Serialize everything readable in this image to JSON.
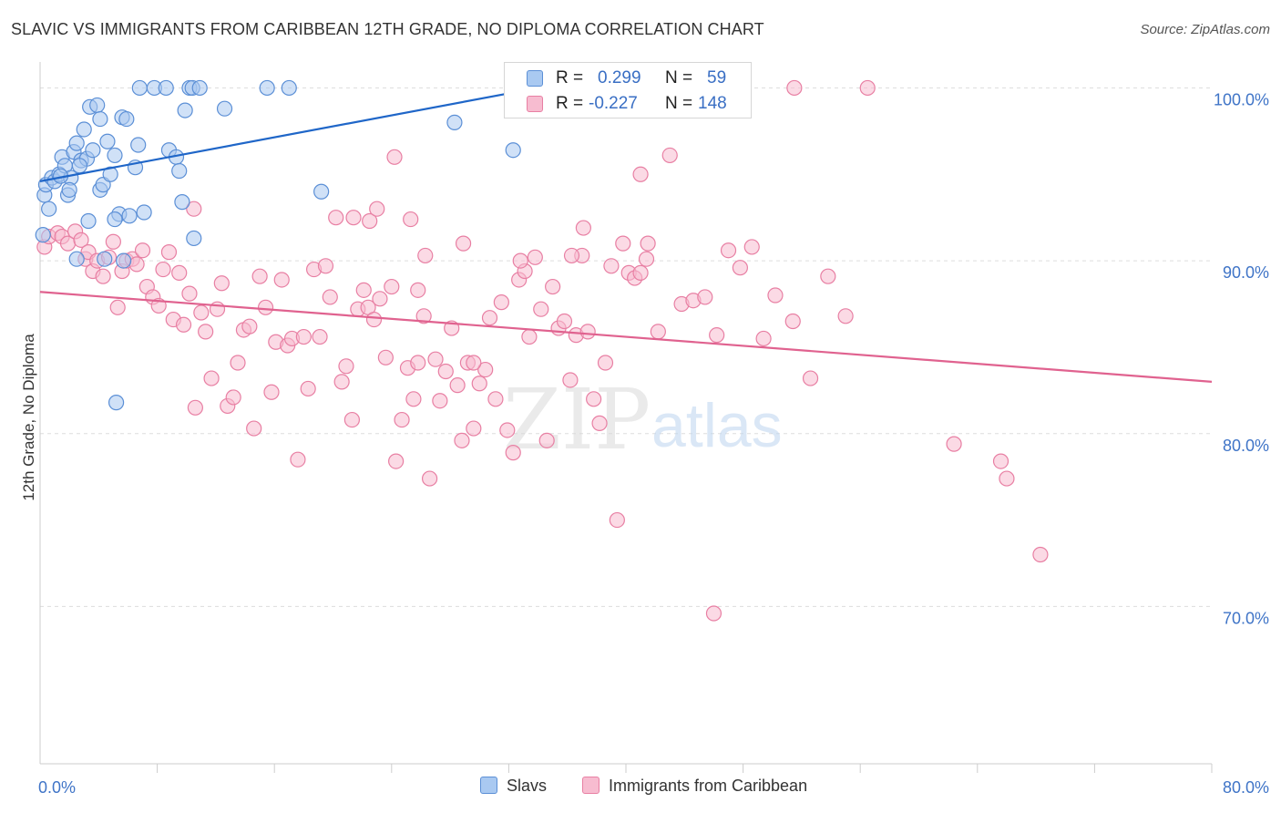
{
  "header": {
    "title": "SLAVIC VS IMMIGRANTS FROM CARIBBEAN 12TH GRADE, NO DIPLOMA CORRELATION CHART",
    "source": "Source: ZipAtlas.com"
  },
  "watermark": {
    "zip": "ZIP",
    "atlas": "atlas"
  },
  "legend": {
    "r_label": "R =",
    "n_label": "N =",
    "rows": [
      {
        "r_value": "0.299",
        "n_value": "59"
      },
      {
        "r_value": "-0.227",
        "n_value": "148"
      }
    ]
  },
  "bottom_legend": [
    "Slavs",
    "Immigrants from Caribbean"
  ],
  "chart_data": {
    "type": "scatter",
    "title": "SLAVIC VS IMMIGRANTS FROM CARIBBEAN 12TH GRADE, NO DIPLOMA CORRELATION CHART",
    "xlabel": "",
    "ylabel": "12th Grade, No Diploma",
    "xlim": [
      0,
      80
    ],
    "ylim": [
      60.9,
      101.5
    ],
    "x_tick_labels": [
      {
        "value": 0,
        "label": "0.0%"
      },
      {
        "value": 80,
        "label": "80.0%"
      }
    ],
    "y_tick_labels": [
      {
        "value": 100,
        "label": "100.0%"
      },
      {
        "value": 90,
        "label": "90.0%"
      },
      {
        "value": 80,
        "label": "80.0%"
      },
      {
        "value": 70,
        "label": "70.0%"
      }
    ],
    "grid": true,
    "legend_position": "top-center",
    "colors": {
      "slavs_fill": "#a9c9f1",
      "slavs_stroke": "#5b8fd6",
      "slavs_line": "#1f66c8",
      "carib_fill": "#f7bcd0",
      "carib_stroke": "#e87fa3",
      "carib_line": "#e0628f",
      "axis_text": "#3f74c7"
    },
    "series": [
      {
        "name": "Slavs",
        "trend": {
          "x": [
            0.0,
            34.0
          ],
          "y": [
            94.6,
            100.0
          ]
        },
        "points": [
          [
            0.3,
            93.8
          ],
          [
            0.4,
            94.4
          ],
          [
            0.6,
            93.0
          ],
          [
            0.8,
            94.8
          ],
          [
            1.0,
            94.6
          ],
          [
            1.3,
            95.0
          ],
          [
            1.5,
            96.0
          ],
          [
            1.7,
            95.5
          ],
          [
            1.9,
            93.8
          ],
          [
            2.1,
            94.8
          ],
          [
            2.3,
            96.3
          ],
          [
            2.5,
            96.8
          ],
          [
            2.8,
            95.8
          ],
          [
            3.0,
            97.6
          ],
          [
            3.2,
            95.9
          ],
          [
            3.4,
            98.9
          ],
          [
            3.6,
            96.4
          ],
          [
            3.9,
            99.0
          ],
          [
            4.1,
            94.1
          ],
          [
            4.3,
            94.4
          ],
          [
            4.6,
            96.9
          ],
          [
            4.8,
            95.0
          ],
          [
            5.1,
            96.1
          ],
          [
            5.4,
            92.7
          ],
          [
            5.6,
            98.3
          ],
          [
            5.9,
            98.2
          ],
          [
            6.1,
            92.6
          ],
          [
            6.5,
            95.4
          ],
          [
            6.7,
            96.7
          ],
          [
            7.1,
            92.8
          ],
          [
            8.8,
            96.4
          ],
          [
            9.3,
            96.0
          ],
          [
            9.5,
            95.2
          ],
          [
            9.7,
            93.4
          ],
          [
            9.9,
            98.7
          ],
          [
            10.5,
            91.3
          ],
          [
            12.6,
            98.8
          ],
          [
            15.5,
            100.0
          ],
          [
            17.0,
            100.0
          ],
          [
            19.2,
            94.0
          ],
          [
            6.8,
            100.0
          ],
          [
            7.8,
            100.0
          ],
          [
            8.6,
            100.0
          ],
          [
            10.2,
            100.0
          ],
          [
            10.4,
            100.0
          ],
          [
            10.9,
            100.0
          ],
          [
            2.5,
            90.1
          ],
          [
            4.4,
            90.1
          ],
          [
            5.7,
            90.0
          ],
          [
            3.3,
            92.3
          ],
          [
            5.1,
            92.4
          ],
          [
            2.0,
            94.1
          ],
          [
            1.4,
            94.9
          ],
          [
            4.1,
            98.2
          ],
          [
            2.7,
            95.5
          ],
          [
            28.3,
            98.0
          ],
          [
            32.3,
            96.4
          ],
          [
            5.2,
            81.8
          ],
          [
            0.2,
            91.5
          ]
        ]
      },
      {
        "name": "Immigrants from Caribbean",
        "trend": {
          "x": [
            0.0,
            80.0
          ],
          "y": [
            88.2,
            83.0
          ]
        },
        "points": [
          [
            0.3,
            90.8
          ],
          [
            0.6,
            91.4
          ],
          [
            1.2,
            91.6
          ],
          [
            1.5,
            91.4
          ],
          [
            1.9,
            91.0
          ],
          [
            2.4,
            91.7
          ],
          [
            2.8,
            91.2
          ],
          [
            3.1,
            90.1
          ],
          [
            3.3,
            90.5
          ],
          [
            3.6,
            89.4
          ],
          [
            3.9,
            90.0
          ],
          [
            4.3,
            89.1
          ],
          [
            4.7,
            90.2
          ],
          [
            5.0,
            91.1
          ],
          [
            5.3,
            87.3
          ],
          [
            5.6,
            89.4
          ],
          [
            5.9,
            90.0
          ],
          [
            6.3,
            90.1
          ],
          [
            6.6,
            89.8
          ],
          [
            7.0,
            90.6
          ],
          [
            7.3,
            88.5
          ],
          [
            7.7,
            87.9
          ],
          [
            8.1,
            87.4
          ],
          [
            8.4,
            89.5
          ],
          [
            8.8,
            90.5
          ],
          [
            9.1,
            86.6
          ],
          [
            9.5,
            89.3
          ],
          [
            9.8,
            86.3
          ],
          [
            10.2,
            88.1
          ],
          [
            10.6,
            81.5
          ],
          [
            11.0,
            87.0
          ],
          [
            11.3,
            85.9
          ],
          [
            11.7,
            83.2
          ],
          [
            12.1,
            87.2
          ],
          [
            12.4,
            88.7
          ],
          [
            12.8,
            81.6
          ],
          [
            13.2,
            82.1
          ],
          [
            13.5,
            84.1
          ],
          [
            13.9,
            86.0
          ],
          [
            14.3,
            86.2
          ],
          [
            14.6,
            80.3
          ],
          [
            15.0,
            89.1
          ],
          [
            15.4,
            87.3
          ],
          [
            15.8,
            82.4
          ],
          [
            16.1,
            85.3
          ],
          [
            16.5,
            88.9
          ],
          [
            16.9,
            85.1
          ],
          [
            17.2,
            85.5
          ],
          [
            17.6,
            78.5
          ],
          [
            18.0,
            85.6
          ],
          [
            18.3,
            82.6
          ],
          [
            18.7,
            89.5
          ],
          [
            19.1,
            85.6
          ],
          [
            19.5,
            89.7
          ],
          [
            19.8,
            87.9
          ],
          [
            20.2,
            92.5
          ],
          [
            20.6,
            83.0
          ],
          [
            20.9,
            83.9
          ],
          [
            21.3,
            80.8
          ],
          [
            21.7,
            87.2
          ],
          [
            22.1,
            88.3
          ],
          [
            22.4,
            87.3
          ],
          [
            22.8,
            86.6
          ],
          [
            23.2,
            87.8
          ],
          [
            23.6,
            84.4
          ],
          [
            24.0,
            88.5
          ],
          [
            24.3,
            78.4
          ],
          [
            24.7,
            80.8
          ],
          [
            25.1,
            83.8
          ],
          [
            25.5,
            82.0
          ],
          [
            25.8,
            88.3
          ],
          [
            26.2,
            86.8
          ],
          [
            26.6,
            77.4
          ],
          [
            27.0,
            84.3
          ],
          [
            27.3,
            81.9
          ],
          [
            27.7,
            83.6
          ],
          [
            28.1,
            86.1
          ],
          [
            28.5,
            82.8
          ],
          [
            28.8,
            79.6
          ],
          [
            29.2,
            84.1
          ],
          [
            29.6,
            80.3
          ],
          [
            30.0,
            82.9
          ],
          [
            30.4,
            83.7
          ],
          [
            30.7,
            86.7
          ],
          [
            31.1,
            82.0
          ],
          [
            31.5,
            87.6
          ],
          [
            31.9,
            80.2
          ],
          [
            32.3,
            78.9
          ],
          [
            32.7,
            88.9
          ],
          [
            33.1,
            89.4
          ],
          [
            33.4,
            85.6
          ],
          [
            33.8,
            90.2
          ],
          [
            34.2,
            87.2
          ],
          [
            34.6,
            79.6
          ],
          [
            35.0,
            88.5
          ],
          [
            35.4,
            86.1
          ],
          [
            35.8,
            86.5
          ],
          [
            36.2,
            83.1
          ],
          [
            36.6,
            85.7
          ],
          [
            37.0,
            90.3
          ],
          [
            37.4,
            85.9
          ],
          [
            37.8,
            82.0
          ],
          [
            38.2,
            80.6
          ],
          [
            38.6,
            84.1
          ],
          [
            39.0,
            89.7
          ],
          [
            39.4,
            75.0
          ],
          [
            39.8,
            91.0
          ],
          [
            40.2,
            89.3
          ],
          [
            40.6,
            89.0
          ],
          [
            41.0,
            89.3
          ],
          [
            41.4,
            90.1
          ],
          [
            42.2,
            85.9
          ],
          [
            43.0,
            96.1
          ],
          [
            43.8,
            87.5
          ],
          [
            44.6,
            87.7
          ],
          [
            45.4,
            87.9
          ],
          [
            46.2,
            85.7
          ],
          [
            47.0,
            90.6
          ],
          [
            47.8,
            89.6
          ],
          [
            48.6,
            90.8
          ],
          [
            49.4,
            85.5
          ],
          [
            50.2,
            88.0
          ],
          [
            51.4,
            86.5
          ],
          [
            52.6,
            83.2
          ],
          [
            53.8,
            89.1
          ],
          [
            55.0,
            86.8
          ],
          [
            62.4,
            79.4
          ],
          [
            65.6,
            78.4
          ],
          [
            66.0,
            77.4
          ],
          [
            68.3,
            73.0
          ],
          [
            46.0,
            69.6
          ],
          [
            51.5,
            100.0
          ],
          [
            56.5,
            100.0
          ],
          [
            41.0,
            95.0
          ],
          [
            24.2,
            96.0
          ],
          [
            22.5,
            92.3
          ],
          [
            23.0,
            93.0
          ],
          [
            25.3,
            92.4
          ],
          [
            21.4,
            92.5
          ],
          [
            26.3,
            90.3
          ],
          [
            28.9,
            91.0
          ],
          [
            32.8,
            90.0
          ],
          [
            36.3,
            90.3
          ],
          [
            37.1,
            91.9
          ],
          [
            41.5,
            91.0
          ],
          [
            10.5,
            93.0
          ],
          [
            29.6,
            84.1
          ],
          [
            25.8,
            84.1
          ]
        ]
      }
    ]
  }
}
